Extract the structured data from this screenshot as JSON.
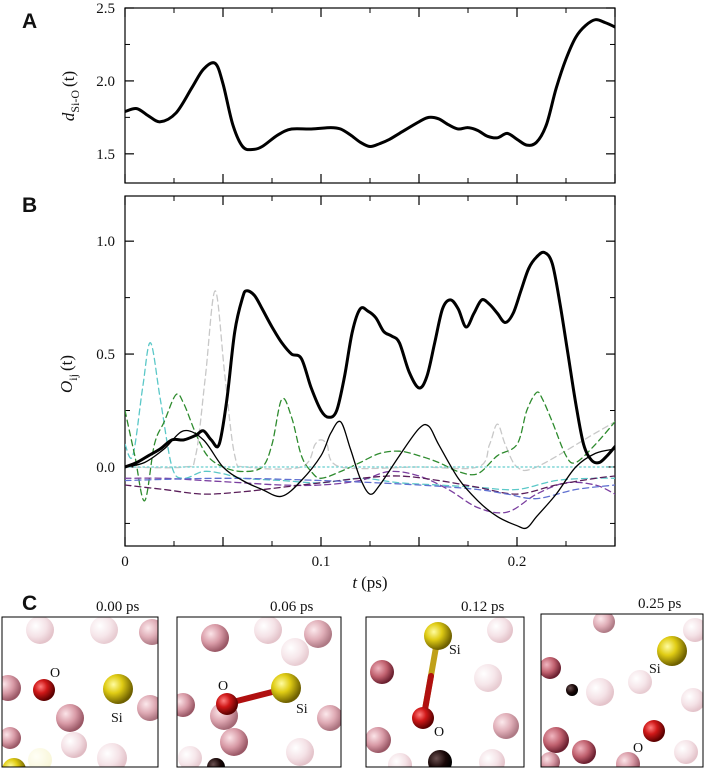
{
  "colors": {
    "background": "#ffffff",
    "main_line": "#000000",
    "green_dash": "#2e8b2e",
    "cyan_dash": "#5bc8c8",
    "purple_dash": "#7b3fa0",
    "darkpurple_dash": "#5a1e5a",
    "gray_dash": "#c8c8c8",
    "blue_dash": "#6070d0",
    "teal_dot": "#7fd6d6",
    "oxygen": "#d01818",
    "silicon": "#e6d21e",
    "bond_red": "#b01010",
    "bond_yellow": "#d6c218"
  },
  "panel_letters": {
    "a": "A",
    "b": "B",
    "c": "C"
  },
  "chart_data": [
    {
      "id": "A",
      "type": "line",
      "ylabel_main": "d",
      "ylabel_sub": "Si-O",
      "ylabel_arg": "(t)",
      "xlim": [
        0,
        0.25
      ],
      "ylim": [
        1.3,
        2.5
      ],
      "yticks": [
        1.5,
        2.0,
        2.5
      ],
      "ytick_labels": [
        "1.5",
        "2.0",
        "2.5"
      ],
      "series": [
        {
          "name": "d_Si-O",
          "style": "solid-thick",
          "x": [
            0,
            0.006,
            0.012,
            0.018,
            0.026,
            0.034,
            0.04,
            0.046,
            0.05,
            0.055,
            0.06,
            0.065,
            0.07,
            0.078,
            0.085,
            0.095,
            0.105,
            0.11,
            0.115,
            0.12,
            0.125,
            0.13,
            0.135,
            0.14,
            0.15,
            0.155,
            0.16,
            0.165,
            0.17,
            0.175,
            0.18,
            0.185,
            0.19,
            0.195,
            0.2,
            0.205,
            0.21,
            0.215,
            0.22,
            0.225,
            0.23,
            0.235,
            0.24,
            0.245,
            0.25
          ],
          "y": [
            1.79,
            1.81,
            1.76,
            1.72,
            1.78,
            1.95,
            2.08,
            2.12,
            1.98,
            1.7,
            1.55,
            1.53,
            1.55,
            1.63,
            1.67,
            1.67,
            1.68,
            1.67,
            1.63,
            1.58,
            1.55,
            1.57,
            1.6,
            1.64,
            1.72,
            1.75,
            1.74,
            1.7,
            1.67,
            1.68,
            1.66,
            1.62,
            1.61,
            1.64,
            1.6,
            1.56,
            1.58,
            1.7,
            1.95,
            2.15,
            2.3,
            2.38,
            2.42,
            2.4,
            2.37
          ]
        }
      ]
    },
    {
      "id": "B",
      "type": "line",
      "ylabel_main": "O",
      "ylabel_sub": "ij",
      "ylabel_arg": "(t)",
      "xlabel_main": "t",
      "xlabel_unit": "(ps)",
      "xlim": [
        0,
        0.25
      ],
      "ylim": [
        -0.35,
        1.2
      ],
      "yticks": [
        0.0,
        0.5,
        1.0
      ],
      "ytick_labels": [
        "0.0",
        "0.5",
        "1.0"
      ],
      "xticks": [
        0,
        0.1,
        0.2
      ],
      "xtick_labels": [
        "0",
        "0.1",
        "0.2"
      ],
      "series": [
        {
          "name": "gray-dash",
          "style": "dash",
          "color_key": "gray_dash",
          "x": [
            0,
            0.03,
            0.036,
            0.041,
            0.046,
            0.051,
            0.056,
            0.062,
            0.09,
            0.097,
            0.1,
            0.103,
            0.11,
            0.15,
            0.18,
            0.186,
            0.19,
            0.194,
            0.2,
            0.21,
            0.24,
            0.25
          ],
          "y": [
            0.0,
            0.0,
            0.05,
            0.4,
            0.78,
            0.4,
            0.05,
            0.0,
            0.0,
            0.1,
            0.12,
            0.1,
            0.0,
            0.0,
            0.0,
            0.1,
            0.19,
            0.1,
            0.0,
            0.0,
            0.15,
            0.2
          ]
        },
        {
          "name": "cyan-dash",
          "style": "dash",
          "color_key": "cyan_dash",
          "x": [
            0,
            0.004,
            0.009,
            0.013,
            0.018,
            0.024,
            0.03,
            0.04,
            0.05,
            0.06,
            0.08,
            0.1,
            0.12,
            0.14,
            0.16,
            0.18,
            0.2,
            0.22,
            0.24,
            0.25
          ],
          "y": [
            0.1,
            0.05,
            0.35,
            0.55,
            0.3,
            0.0,
            -0.05,
            -0.02,
            -0.03,
            -0.05,
            -0.06,
            -0.07,
            -0.05,
            -0.07,
            -0.08,
            -0.09,
            -0.1,
            -0.06,
            -0.05,
            -0.05
          ]
        },
        {
          "name": "green-dash",
          "style": "dash",
          "color_key": "green_dash",
          "x": [
            0,
            0.005,
            0.01,
            0.015,
            0.02,
            0.026,
            0.03,
            0.036,
            0.042,
            0.05,
            0.06,
            0.07,
            0.075,
            0.08,
            0.085,
            0.09,
            0.095,
            0.1,
            0.11,
            0.12,
            0.13,
            0.14,
            0.15,
            0.16,
            0.17,
            0.18,
            0.19,
            0.2,
            0.205,
            0.21,
            0.213,
            0.218,
            0.225,
            0.23,
            0.24,
            0.25
          ],
          "y": [
            0.25,
            0.05,
            -0.15,
            0.1,
            0.2,
            0.32,
            0.28,
            0.15,
            0.05,
            0.0,
            -0.02,
            0.0,
            0.1,
            0.3,
            0.22,
            0.05,
            -0.02,
            -0.05,
            -0.02,
            0.02,
            0.06,
            0.07,
            0.05,
            0.02,
            -0.02,
            -0.03,
            0.05,
            0.1,
            0.25,
            0.33,
            0.3,
            0.2,
            0.05,
            0.02,
            0.1,
            0.2
          ]
        },
        {
          "name": "purple-dash",
          "style": "dash",
          "color_key": "purple_dash",
          "x": [
            0,
            0.02,
            0.04,
            0.06,
            0.08,
            0.1,
            0.12,
            0.135,
            0.15,
            0.165,
            0.18,
            0.195,
            0.21,
            0.225,
            0.24,
            0.25
          ],
          "y": [
            -0.05,
            -0.05,
            -0.06,
            -0.07,
            -0.08,
            -0.08,
            -0.06,
            -0.02,
            -0.04,
            -0.1,
            -0.18,
            -0.2,
            -0.12,
            -0.07,
            -0.08,
            -0.12
          ]
        },
        {
          "name": "darkpurple-dash",
          "style": "dash",
          "color_key": "darkpurple_dash",
          "x": [
            0,
            0.02,
            0.04,
            0.06,
            0.08,
            0.1,
            0.12,
            0.14,
            0.16,
            0.18,
            0.2,
            0.22,
            0.24,
            0.25
          ],
          "y": [
            -0.08,
            -0.1,
            -0.12,
            -0.11,
            -0.09,
            -0.07,
            -0.05,
            -0.04,
            -0.06,
            -0.09,
            -0.12,
            -0.08,
            -0.05,
            -0.04
          ]
        },
        {
          "name": "blue-dash",
          "style": "dash",
          "color_key": "blue_dash",
          "x": [
            0,
            0.05,
            0.1,
            0.15,
            0.18,
            0.195,
            0.21,
            0.23,
            0.25
          ],
          "y": [
            -0.06,
            -0.05,
            -0.06,
            -0.08,
            -0.1,
            -0.12,
            -0.14,
            -0.1,
            -0.08
          ]
        },
        {
          "name": "teal-dot",
          "style": "dot",
          "color_key": "teal_dot",
          "x": [
            0,
            0.25
          ],
          "y": [
            0.0,
            0.0
          ]
        },
        {
          "name": "thin-black",
          "style": "solid-thin",
          "color_key": "main_line",
          "x": [
            0,
            0.01,
            0.02,
            0.03,
            0.04,
            0.05,
            0.06,
            0.07,
            0.08,
            0.09,
            0.1,
            0.105,
            0.11,
            0.115,
            0.12,
            0.125,
            0.13,
            0.14,
            0.15,
            0.155,
            0.16,
            0.17,
            0.18,
            0.19,
            0.2,
            0.205,
            0.21,
            0.22,
            0.23,
            0.24,
            0.25
          ],
          "y": [
            0.0,
            0.02,
            0.08,
            0.16,
            0.12,
            0.0,
            -0.06,
            -0.1,
            -0.13,
            -0.06,
            0.05,
            0.15,
            0.2,
            0.08,
            -0.05,
            -0.12,
            -0.08,
            0.05,
            0.17,
            0.18,
            0.1,
            -0.05,
            -0.15,
            -0.22,
            -0.26,
            -0.27,
            -0.22,
            -0.12,
            0.0,
            0.06,
            0.08
          ]
        },
        {
          "name": "thick-black",
          "style": "solid-thick",
          "color_key": "main_line",
          "x": [
            0,
            0.006,
            0.012,
            0.018,
            0.024,
            0.03,
            0.036,
            0.04,
            0.044,
            0.048,
            0.052,
            0.056,
            0.06,
            0.062,
            0.066,
            0.07,
            0.075,
            0.08,
            0.085,
            0.09,
            0.095,
            0.1,
            0.104,
            0.108,
            0.112,
            0.116,
            0.12,
            0.124,
            0.128,
            0.132,
            0.136,
            0.14,
            0.145,
            0.15,
            0.154,
            0.158,
            0.162,
            0.166,
            0.17,
            0.174,
            0.178,
            0.182,
            0.186,
            0.19,
            0.194,
            0.198,
            0.202,
            0.206,
            0.21,
            0.214,
            0.218,
            0.222,
            0.226,
            0.23,
            0.234,
            0.238,
            0.242,
            0.246,
            0.25
          ],
          "y": [
            0.0,
            0.02,
            0.05,
            0.08,
            0.12,
            0.12,
            0.14,
            0.16,
            0.12,
            0.1,
            0.3,
            0.6,
            0.75,
            0.78,
            0.76,
            0.7,
            0.62,
            0.55,
            0.5,
            0.48,
            0.35,
            0.25,
            0.22,
            0.25,
            0.4,
            0.6,
            0.7,
            0.69,
            0.66,
            0.6,
            0.58,
            0.55,
            0.42,
            0.35,
            0.4,
            0.55,
            0.7,
            0.74,
            0.7,
            0.62,
            0.68,
            0.74,
            0.72,
            0.68,
            0.64,
            0.68,
            0.78,
            0.88,
            0.93,
            0.95,
            0.9,
            0.72,
            0.5,
            0.28,
            0.1,
            0.03,
            0.02,
            0.05,
            0.09
          ]
        }
      ]
    }
  ],
  "snapshots": [
    {
      "time": "0.00 ps",
      "o_label": "O",
      "si_label": "Si"
    },
    {
      "time": "0.06 ps",
      "o_label": "O",
      "si_label": "Si"
    },
    {
      "time": "0.12 ps",
      "o_label": "O",
      "si_label": "Si"
    },
    {
      "time": "0.25 ps",
      "o_label": "O",
      "si_label": "Si"
    }
  ]
}
